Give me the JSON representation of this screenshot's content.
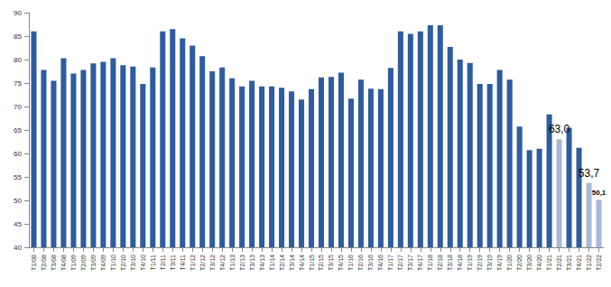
{
  "chart_data": {
    "type": "bar",
    "categories": [
      "T1/08",
      "T2/08",
      "T3/08",
      "T4/08",
      "T1/09",
      "T2/09",
      "T3/09",
      "T4/09",
      "T1/10",
      "T2/10",
      "T3/10",
      "T4/10",
      "T1/11",
      "T2/11",
      "T3/11",
      "T4/11",
      "T1/12",
      "T2/12",
      "T3/12",
      "T4/12",
      "T1/13",
      "T2/13",
      "T3/13",
      "T4/13",
      "T1/14",
      "T2/14",
      "T3/14",
      "T4/14",
      "T1/15",
      "T2/15",
      "T3/15",
      "T4/15",
      "T1/16",
      "T2/16",
      "T3/16",
      "T4/16",
      "T1/17",
      "T2/17",
      "T3/17",
      "T4/17",
      "T1/18",
      "T2/18",
      "T3/18",
      "T4/18",
      "T1/19",
      "T2/19",
      "T3/19",
      "T4/19",
      "T1/20",
      "T2/20",
      "T3/20",
      "T4/20",
      "T1/21",
      "T2/21",
      "T3/21",
      "T4/21",
      "T1/22",
      "T2/22"
    ],
    "values": [
      86,
      77.8,
      75.5,
      80.3,
      77,
      77.8,
      79.2,
      79.5,
      80.3,
      78.8,
      78.5,
      74.8,
      78.3,
      86,
      86.5,
      84.5,
      83,
      80.7,
      77.5,
      78.3,
      76,
      74.3,
      75.5,
      74.3,
      74.3,
      74,
      73.2,
      71.5,
      73.7,
      76.2,
      76.3,
      77.2,
      71.7,
      75.7,
      73.8,
      73.7,
      78.2,
      86,
      85.5,
      86,
      87.3,
      87.3,
      82.7,
      80,
      79.3,
      74.8,
      74.8,
      77.8,
      75.7,
      65.7,
      60.7,
      61,
      68.3,
      63.0,
      65.5,
      61.2,
      53.7,
      50.1
    ],
    "value_labels": [
      null,
      null,
      null,
      null,
      null,
      null,
      null,
      null,
      null,
      null,
      null,
      null,
      null,
      null,
      null,
      null,
      null,
      null,
      null,
      null,
      null,
      null,
      null,
      null,
      null,
      null,
      null,
      null,
      null,
      null,
      null,
      null,
      null,
      null,
      null,
      null,
      null,
      null,
      null,
      null,
      null,
      null,
      null,
      null,
      null,
      null,
      null,
      null,
      null,
      null,
      null,
      null,
      null,
      "63,0",
      null,
      null,
      "53,7",
      "50,1"
    ],
    "colors": [
      "#2e5c9e",
      "#2e5c9e",
      "#2e5c9e",
      "#2e5c9e",
      "#2e5c9e",
      "#2e5c9e",
      "#2e5c9e",
      "#2e5c9e",
      "#2e5c9e",
      "#2e5c9e",
      "#2e5c9e",
      "#2e5c9e",
      "#2e5c9e",
      "#2e5c9e",
      "#2e5c9e",
      "#2e5c9e",
      "#2e5c9e",
      "#2e5c9e",
      "#2e5c9e",
      "#2e5c9e",
      "#2e5c9e",
      "#2e5c9e",
      "#2e5c9e",
      "#2e5c9e",
      "#2e5c9e",
      "#2e5c9e",
      "#2e5c9e",
      "#2e5c9e",
      "#2e5c9e",
      "#2e5c9e",
      "#2e5c9e",
      "#2e5c9e",
      "#2e5c9e",
      "#2e5c9e",
      "#2e5c9e",
      "#2e5c9e",
      "#2e5c9e",
      "#2e5c9e",
      "#2e5c9e",
      "#2e5c9e",
      "#2e5c9e",
      "#2e5c9e",
      "#2e5c9e",
      "#2e5c9e",
      "#2e5c9e",
      "#2e5c9e",
      "#2e5c9e",
      "#2e5c9e",
      "#2e5c9e",
      "#2e5c9e",
      "#2e5c9e",
      "#2e5c9e",
      "#2e5c9e",
      "#a9b8d4",
      "#2e5c9e",
      "#2e5c9e",
      "#a9b8d4",
      "#a9b8d4"
    ],
    "ylim": [
      40,
      90
    ],
    "yticks": [
      40,
      45,
      50,
      55,
      60,
      65,
      70,
      75,
      80,
      85,
      90
    ],
    "grid": false,
    "data_labels": true
  }
}
